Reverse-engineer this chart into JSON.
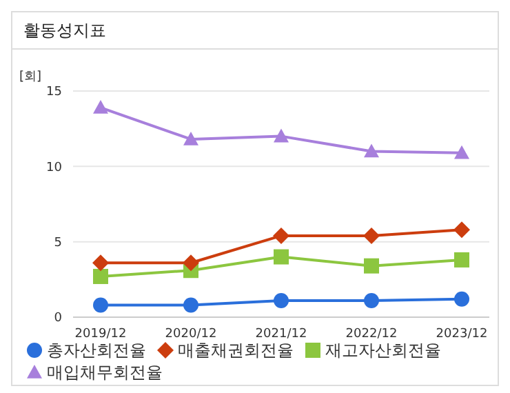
{
  "chart_data": {
    "type": "line",
    "title": "활동성지표",
    "ylabel": "[회]",
    "categories": [
      "2019/12",
      "2020/12",
      "2021/12",
      "2022/12",
      "2023/12"
    ],
    "series": [
      {
        "name": "총자산회전율",
        "color": "#2a6fdb",
        "marker": "circle",
        "values": [
          0.8,
          0.8,
          1.1,
          1.1,
          1.2
        ]
      },
      {
        "name": "매출채권회전율",
        "color": "#cc3d0e",
        "marker": "diamond",
        "values": [
          3.6,
          3.6,
          5.4,
          5.4,
          5.8
        ]
      },
      {
        "name": "재고자산회전율",
        "color": "#8cc63f",
        "marker": "square",
        "values": [
          2.7,
          3.1,
          4.0,
          3.4,
          3.8
        ]
      },
      {
        "name": "매입채무회전율",
        "color": "#a77fdc",
        "marker": "triangle",
        "values": [
          13.9,
          11.8,
          12.0,
          11.0,
          10.9
        ]
      }
    ],
    "ylim": [
      0,
      15
    ],
    "yticks": [
      0,
      5,
      10,
      15
    ],
    "grid": "y",
    "legend": "bottom"
  }
}
